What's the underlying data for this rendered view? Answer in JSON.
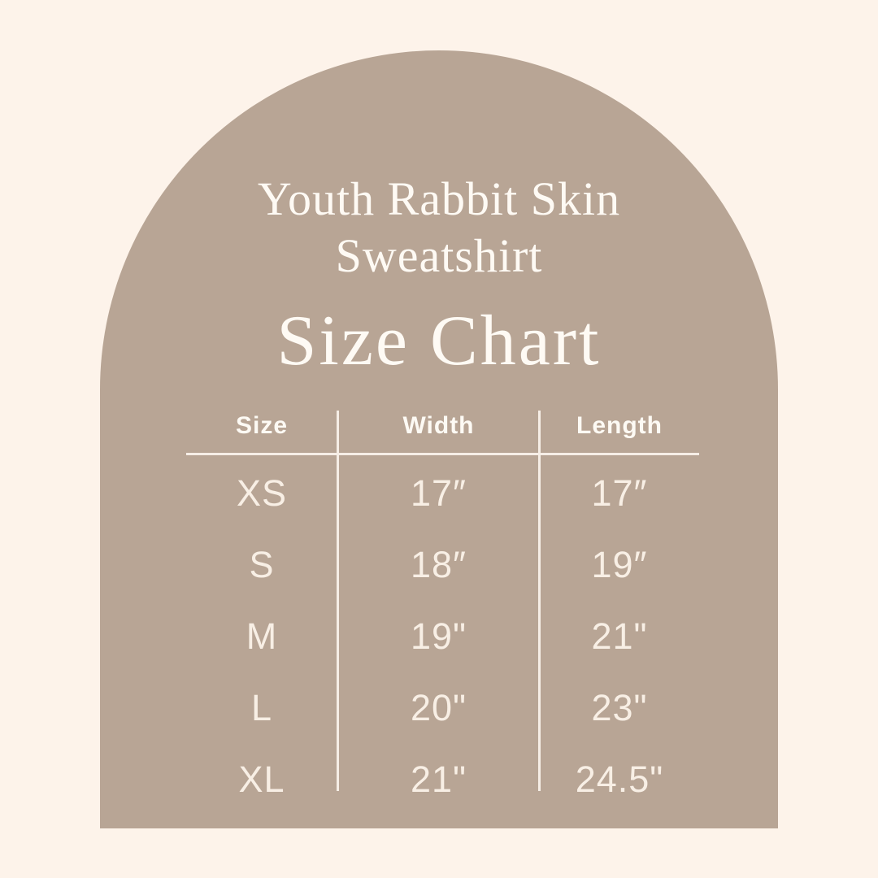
{
  "page": {
    "background_color": "#fdf3ea",
    "arch_color": "#b8a595",
    "text_color": "#fefaf4",
    "line_color": "#f6eee6"
  },
  "header": {
    "title_line1": "Youth Rabbit Skin",
    "title_line2": "Sweatshirt",
    "subtitle": "Size Chart"
  },
  "table": {
    "columns": [
      "Size",
      "Width",
      "Length"
    ],
    "rows": [
      {
        "size": "XS",
        "width": "17″",
        "length": "17″"
      },
      {
        "size": "S",
        "width": "18″",
        "length": "19″"
      },
      {
        "size": "M",
        "width": "19\"",
        "length": "21\""
      },
      {
        "size": "L",
        "width": "20\"",
        "length": "23\""
      },
      {
        "size": "XL",
        "width": "21\"",
        "length": "24.5\""
      }
    ]
  },
  "chart_data": {
    "type": "table",
    "title": "Youth Rabbit Skin Sweatshirt Size Chart",
    "columns": [
      "Size",
      "Width",
      "Length"
    ],
    "rows": [
      [
        "XS",
        "17″",
        "17″"
      ],
      [
        "S",
        "18″",
        "19″"
      ],
      [
        "M",
        "19\"",
        "21\""
      ],
      [
        "L",
        "20\"",
        "23\""
      ],
      [
        "XL",
        "21\"",
        "24.5\""
      ]
    ],
    "units": "inches",
    "layout": "arch banner with centered 3-column table, white rules between columns and under header"
  }
}
